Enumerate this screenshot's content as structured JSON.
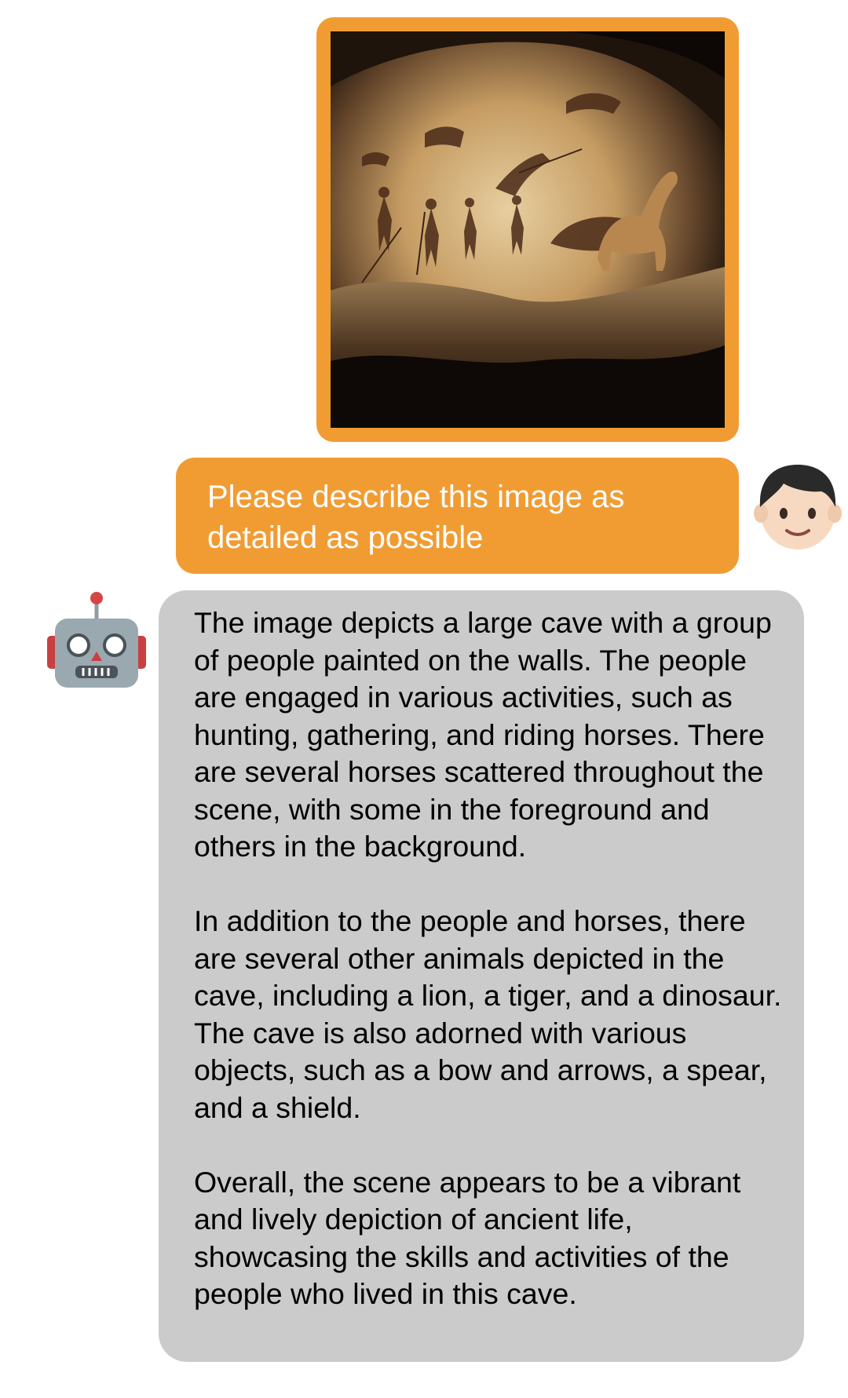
{
  "user_image": {
    "icon": "cave-painting-image",
    "frame_color": "#f19c33"
  },
  "user_message": {
    "text": "Please describe this image as detailed as possible"
  },
  "avatars": {
    "user_icon": "boy-face-emoji",
    "bot_icon": "robot-face-emoji"
  },
  "bot_message": {
    "paragraphs": [
      "The image depicts a large cave with a group of people painted on the walls. The people are engaged in various activities, such as hunting, gathering, and riding horses. There are several horses scattered throughout the scene, with some in the foreground and others in the background.",
      "In addition to the people and horses, there are several other animals depicted in the cave, including a lion, a tiger, and a dinosaur. The cave is also adorned with various objects, such as a bow and arrows, a spear, and a shield.",
      "Overall, the scene appears to be a vibrant and lively depiction of ancient life, showcasing the skills and activities of the people who lived in this cave."
    ]
  },
  "colors": {
    "user_bubble": "#f19c33",
    "bot_bubble": "#cbcbcb",
    "user_text": "#ffffff",
    "bot_text": "#000000"
  }
}
